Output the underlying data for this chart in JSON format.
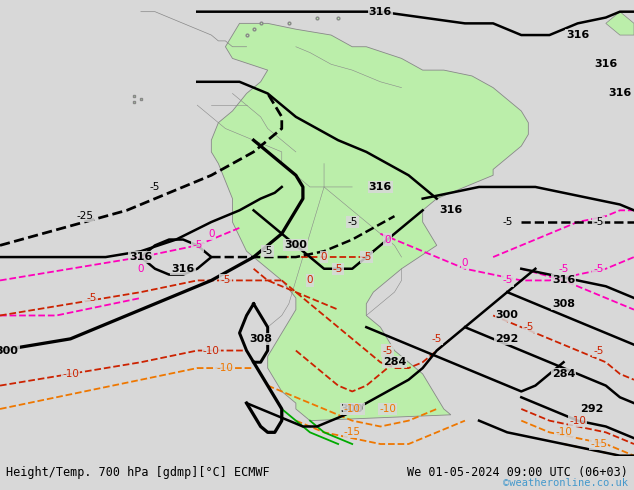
{
  "title_left": "Height/Temp. 700 hPa [gdmp][°C] ECMWF",
  "title_right": "We 01-05-2024 09:00 UTC (06+03)",
  "credit": "©weatheronline.co.uk",
  "credit_color": "#4499cc",
  "background_color": "#d8d8d8",
  "land_color": "#bbeeaa",
  "border_color": "#888888",
  "ocean_color": "#d8d8d8",
  "fig_width": 6.34,
  "fig_height": 4.9,
  "dpi": 100,
  "title_fontsize": 8.5,
  "credit_fontsize": 7.5,
  "black": "#000000",
  "pink": "#ff00bb",
  "red": "#cc2200",
  "orange": "#ee7700",
  "green": "#00aa00",
  "lon_min": -110,
  "lon_max": -20,
  "lat_min": -62,
  "lat_max": 16
}
